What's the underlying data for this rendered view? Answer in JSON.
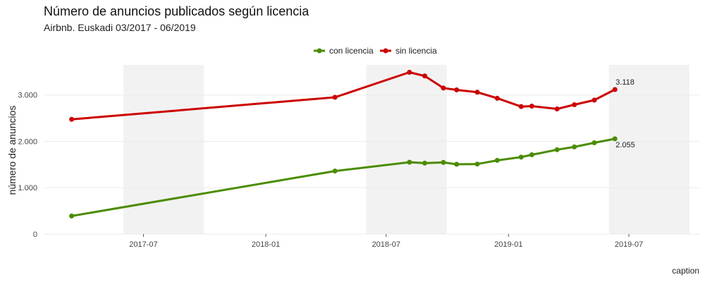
{
  "chart_data": {
    "type": "line",
    "title": "Número de anuncios publicados según licencia",
    "subtitle": "Airbnb. Euskadi 03/2017 - 06/2019",
    "ylabel": "número de anuncios",
    "xlabel": "",
    "caption": "caption",
    "ylim": [
      0,
      3650
    ],
    "xlim": [
      "2017-02-01",
      "2019-10-15"
    ],
    "y_ticks": [
      {
        "value": 0,
        "label": "0"
      },
      {
        "value": 1000,
        "label": "1.000"
      },
      {
        "value": 2000,
        "label": "2.000"
      },
      {
        "value": 3000,
        "label": "3.000"
      }
    ],
    "x_ticks": [
      {
        "date": "2017-07-01",
        "label": "2017-07"
      },
      {
        "date": "2018-01-01",
        "label": "2018-01"
      },
      {
        "date": "2018-07-01",
        "label": "2018-07"
      },
      {
        "date": "2019-01-01",
        "label": "2019-01"
      },
      {
        "date": "2019-07-01",
        "label": "2019-07"
      }
    ],
    "shaded_periods": [
      [
        "2017-06-01",
        "2017-09-30"
      ],
      [
        "2018-06-01",
        "2018-09-30"
      ],
      [
        "2019-06-01",
        "2019-09-30"
      ]
    ],
    "grid": true,
    "legend_position": "top",
    "series": [
      {
        "name": "con licencia",
        "color": "#4a8c00",
        "points": [
          {
            "x": "2017-03-15",
            "y": 390
          },
          {
            "x": "2018-04-15",
            "y": 1360
          },
          {
            "x": "2018-08-05",
            "y": 1550
          },
          {
            "x": "2018-08-28",
            "y": 1530
          },
          {
            "x": "2018-09-25",
            "y": 1545
          },
          {
            "x": "2018-10-15",
            "y": 1505
          },
          {
            "x": "2018-11-15",
            "y": 1510
          },
          {
            "x": "2018-12-15",
            "y": 1590
          },
          {
            "x": "2019-01-20",
            "y": 1660
          },
          {
            "x": "2019-02-05",
            "y": 1710
          },
          {
            "x": "2019-03-15",
            "y": 1820
          },
          {
            "x": "2019-04-10",
            "y": 1880
          },
          {
            "x": "2019-05-10",
            "y": 1970
          },
          {
            "x": "2019-06-10",
            "y": 2055
          }
        ],
        "end_label": "2.055"
      },
      {
        "name": "sin licencia",
        "color": "#cc0000",
        "points": [
          {
            "x": "2017-03-15",
            "y": 2475
          },
          {
            "x": "2018-04-15",
            "y": 2950
          },
          {
            "x": "2018-08-05",
            "y": 3490
          },
          {
            "x": "2018-08-28",
            "y": 3410
          },
          {
            "x": "2018-09-25",
            "y": 3150
          },
          {
            "x": "2018-10-15",
            "y": 3110
          },
          {
            "x": "2018-11-15",
            "y": 3060
          },
          {
            "x": "2018-12-15",
            "y": 2930
          },
          {
            "x": "2019-01-20",
            "y": 2750
          },
          {
            "x": "2019-02-05",
            "y": 2760
          },
          {
            "x": "2019-03-15",
            "y": 2700
          },
          {
            "x": "2019-04-10",
            "y": 2790
          },
          {
            "x": "2019-05-10",
            "y": 2890
          },
          {
            "x": "2019-06-10",
            "y": 3118
          }
        ],
        "end_label": "3.118"
      }
    ]
  }
}
